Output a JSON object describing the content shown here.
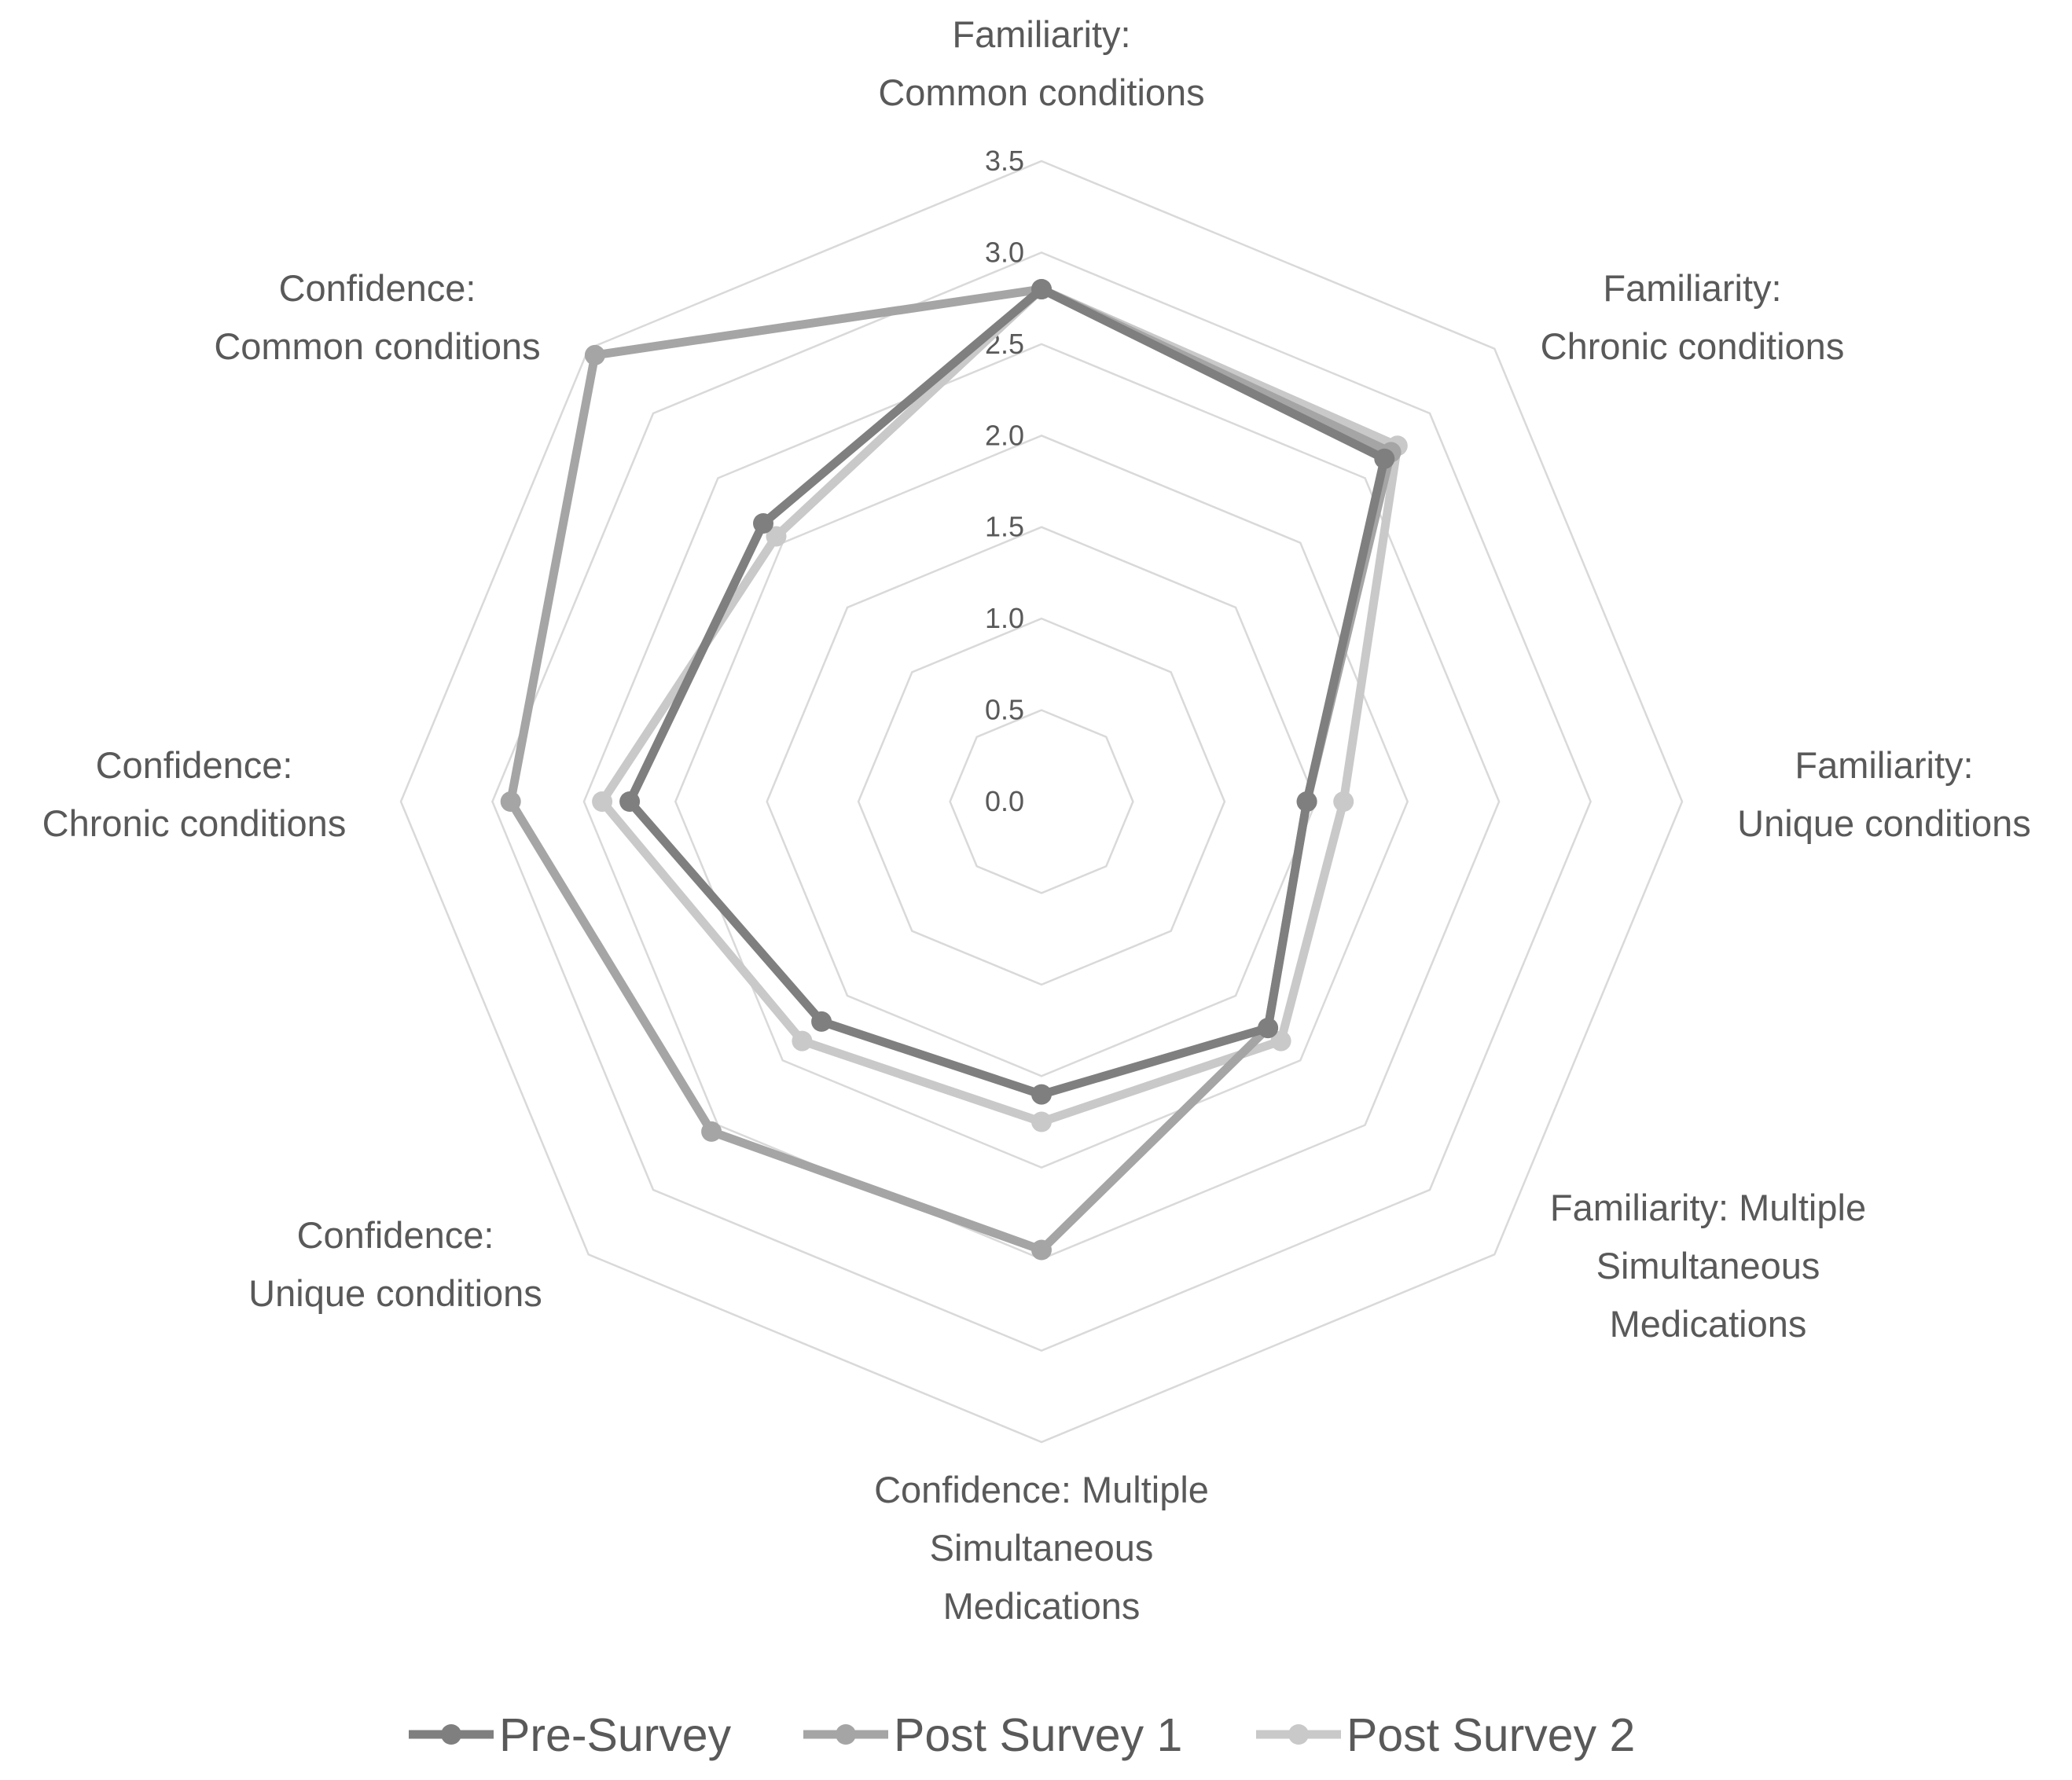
{
  "chart_data": {
    "type": "radar",
    "categories": [
      [
        "Familiarity:",
        "Common conditions"
      ],
      [
        "Familiarity:",
        "Chronic conditions"
      ],
      [
        "Familiarity:",
        "Unique conditions"
      ],
      [
        "Familiarity: Multiple",
        "Simultaneous",
        "Medications"
      ],
      [
        "Confidence: Multiple",
        "Simultaneous",
        "Medications"
      ],
      [
        "Confidence:",
        "Unique conditions"
      ],
      [
        "Confidence:",
        "Chronic conditions"
      ],
      [
        "Confidence:",
        "Common conditions"
      ]
    ],
    "rlim": [
      0,
      3.5
    ],
    "ticks": [
      "0.0",
      "0.5",
      "1.0",
      "1.5",
      "2.0",
      "2.5",
      "3.0",
      "3.5"
    ],
    "grid": true,
    "legend_position": "bottom",
    "series": [
      {
        "name": "Pre-Survey",
        "color": "#7f7f7f",
        "values": [
          2.8,
          2.65,
          1.45,
          1.75,
          1.6,
          1.7,
          2.25,
          2.15
        ]
      },
      {
        "name": "Post Survey 1",
        "color": "#a5a5a5",
        "values": [
          2.8,
          2.7,
          1.45,
          1.75,
          2.45,
          2.55,
          2.9,
          3.45
        ]
      },
      {
        "name": "Post Survey 2",
        "color": "#c9c9c9",
        "values": [
          2.8,
          2.75,
          1.65,
          1.85,
          1.75,
          1.85,
          2.4,
          2.05
        ]
      }
    ]
  }
}
